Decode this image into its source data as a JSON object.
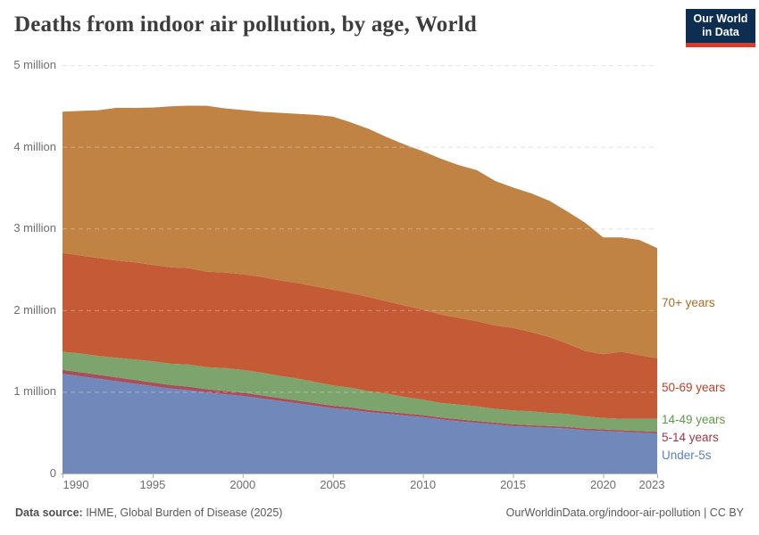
{
  "header": {
    "title": "Deaths from indoor air pollution, by age, World"
  },
  "logo": {
    "line1": "Our World",
    "line2": "in Data",
    "bg_color": "#0d2d51",
    "bar_color": "#dc3a2a"
  },
  "chart_data": {
    "type": "area",
    "stacked": true,
    "title": "Deaths from indoor air pollution, by age, World",
    "xlabel": "",
    "ylabel": "",
    "unit": "million deaths per year",
    "ylim": [
      0,
      5
    ],
    "grid": "horizontal dashed",
    "legend_position": "right-of-plot",
    "x": [
      1990,
      1991,
      1992,
      1993,
      1994,
      1995,
      1996,
      1997,
      1998,
      1999,
      2000,
      2001,
      2002,
      2003,
      2004,
      2005,
      2006,
      2007,
      2008,
      2009,
      2010,
      2011,
      2012,
      2013,
      2014,
      2015,
      2016,
      2017,
      2018,
      2019,
      2020,
      2021,
      2022,
      2023
    ],
    "x_tick_years": [
      1990,
      1995,
      2000,
      2005,
      2010,
      2015,
      2020,
      2023
    ],
    "x_tick_labels": [
      "1990",
      "1995",
      "2000",
      "2005",
      "2010",
      "2015",
      "2020",
      "2023"
    ],
    "y_tick_values": [
      0,
      1,
      2,
      3,
      4,
      5
    ],
    "y_tick_labels": [
      "0",
      "1 million",
      "2 million",
      "3 million",
      "4 million",
      "5 million"
    ],
    "series": [
      {
        "name": "Under-5s",
        "fill": "#7189ba",
        "label_color": "#5b80c1",
        "values": [
          1.22,
          1.19,
          1.16,
          1.13,
          1.1,
          1.07,
          1.04,
          1.02,
          0.99,
          0.97,
          0.95,
          0.92,
          0.89,
          0.86,
          0.83,
          0.8,
          0.78,
          0.75,
          0.73,
          0.71,
          0.69,
          0.66,
          0.64,
          0.62,
          0.6,
          0.58,
          0.57,
          0.56,
          0.55,
          0.53,
          0.52,
          0.51,
          0.5,
          0.49
        ]
      },
      {
        "name": "5-14 years",
        "fill": "#a5505c",
        "label_color": "#a23548",
        "values": [
          0.05,
          0.049,
          0.048,
          0.047,
          0.046,
          0.045,
          0.044,
          0.043,
          0.042,
          0.041,
          0.04,
          0.038,
          0.036,
          0.034,
          0.032,
          0.03,
          0.029,
          0.028,
          0.027,
          0.026,
          0.025,
          0.024,
          0.024,
          0.023,
          0.022,
          0.022,
          0.021,
          0.021,
          0.02,
          0.02,
          0.02,
          0.02,
          0.02,
          0.02
        ]
      },
      {
        "name": "14-49 years",
        "fill": "#7da46c",
        "label_color": "#61994b",
        "values": [
          0.22,
          0.23,
          0.23,
          0.24,
          0.25,
          0.26,
          0.26,
          0.27,
          0.27,
          0.28,
          0.28,
          0.28,
          0.27,
          0.27,
          0.26,
          0.25,
          0.24,
          0.23,
          0.22,
          0.2,
          0.19,
          0.18,
          0.18,
          0.18,
          0.17,
          0.17,
          0.17,
          0.16,
          0.16,
          0.15,
          0.14,
          0.14,
          0.15,
          0.16
        ]
      },
      {
        "name": "50-69 years",
        "fill": "#c45a36",
        "label_color": "#c23d22",
        "values": [
          1.21,
          1.2,
          1.2,
          1.19,
          1.19,
          1.18,
          1.18,
          1.18,
          1.17,
          1.17,
          1.17,
          1.17,
          1.17,
          1.17,
          1.17,
          1.17,
          1.16,
          1.15,
          1.13,
          1.12,
          1.1,
          1.08,
          1.06,
          1.04,
          1.02,
          1.01,
          0.97,
          0.93,
          0.86,
          0.8,
          0.78,
          0.82,
          0.78,
          0.74
        ]
      },
      {
        "name": "70+ years",
        "fill": "#c08343",
        "label_color": "#ad6b20",
        "values": [
          1.73,
          1.77,
          1.81,
          1.87,
          1.89,
          1.925,
          1.97,
          1.99,
          2.03,
          2.01,
          2.01,
          2.02,
          2.05,
          2.07,
          2.1,
          2.12,
          2.09,
          2.06,
          2.01,
          1.97,
          1.94,
          1.91,
          1.87,
          1.85,
          1.77,
          1.72,
          1.7,
          1.67,
          1.62,
          1.57,
          1.43,
          1.4,
          1.41,
          1.35
        ]
      }
    ]
  },
  "footer": {
    "source_label": "Data source:",
    "source_text": " IHME, Global Burden of Disease (2025)",
    "link_text": "OurWorldinData.org/indoor-air-pollution | CC BY"
  }
}
